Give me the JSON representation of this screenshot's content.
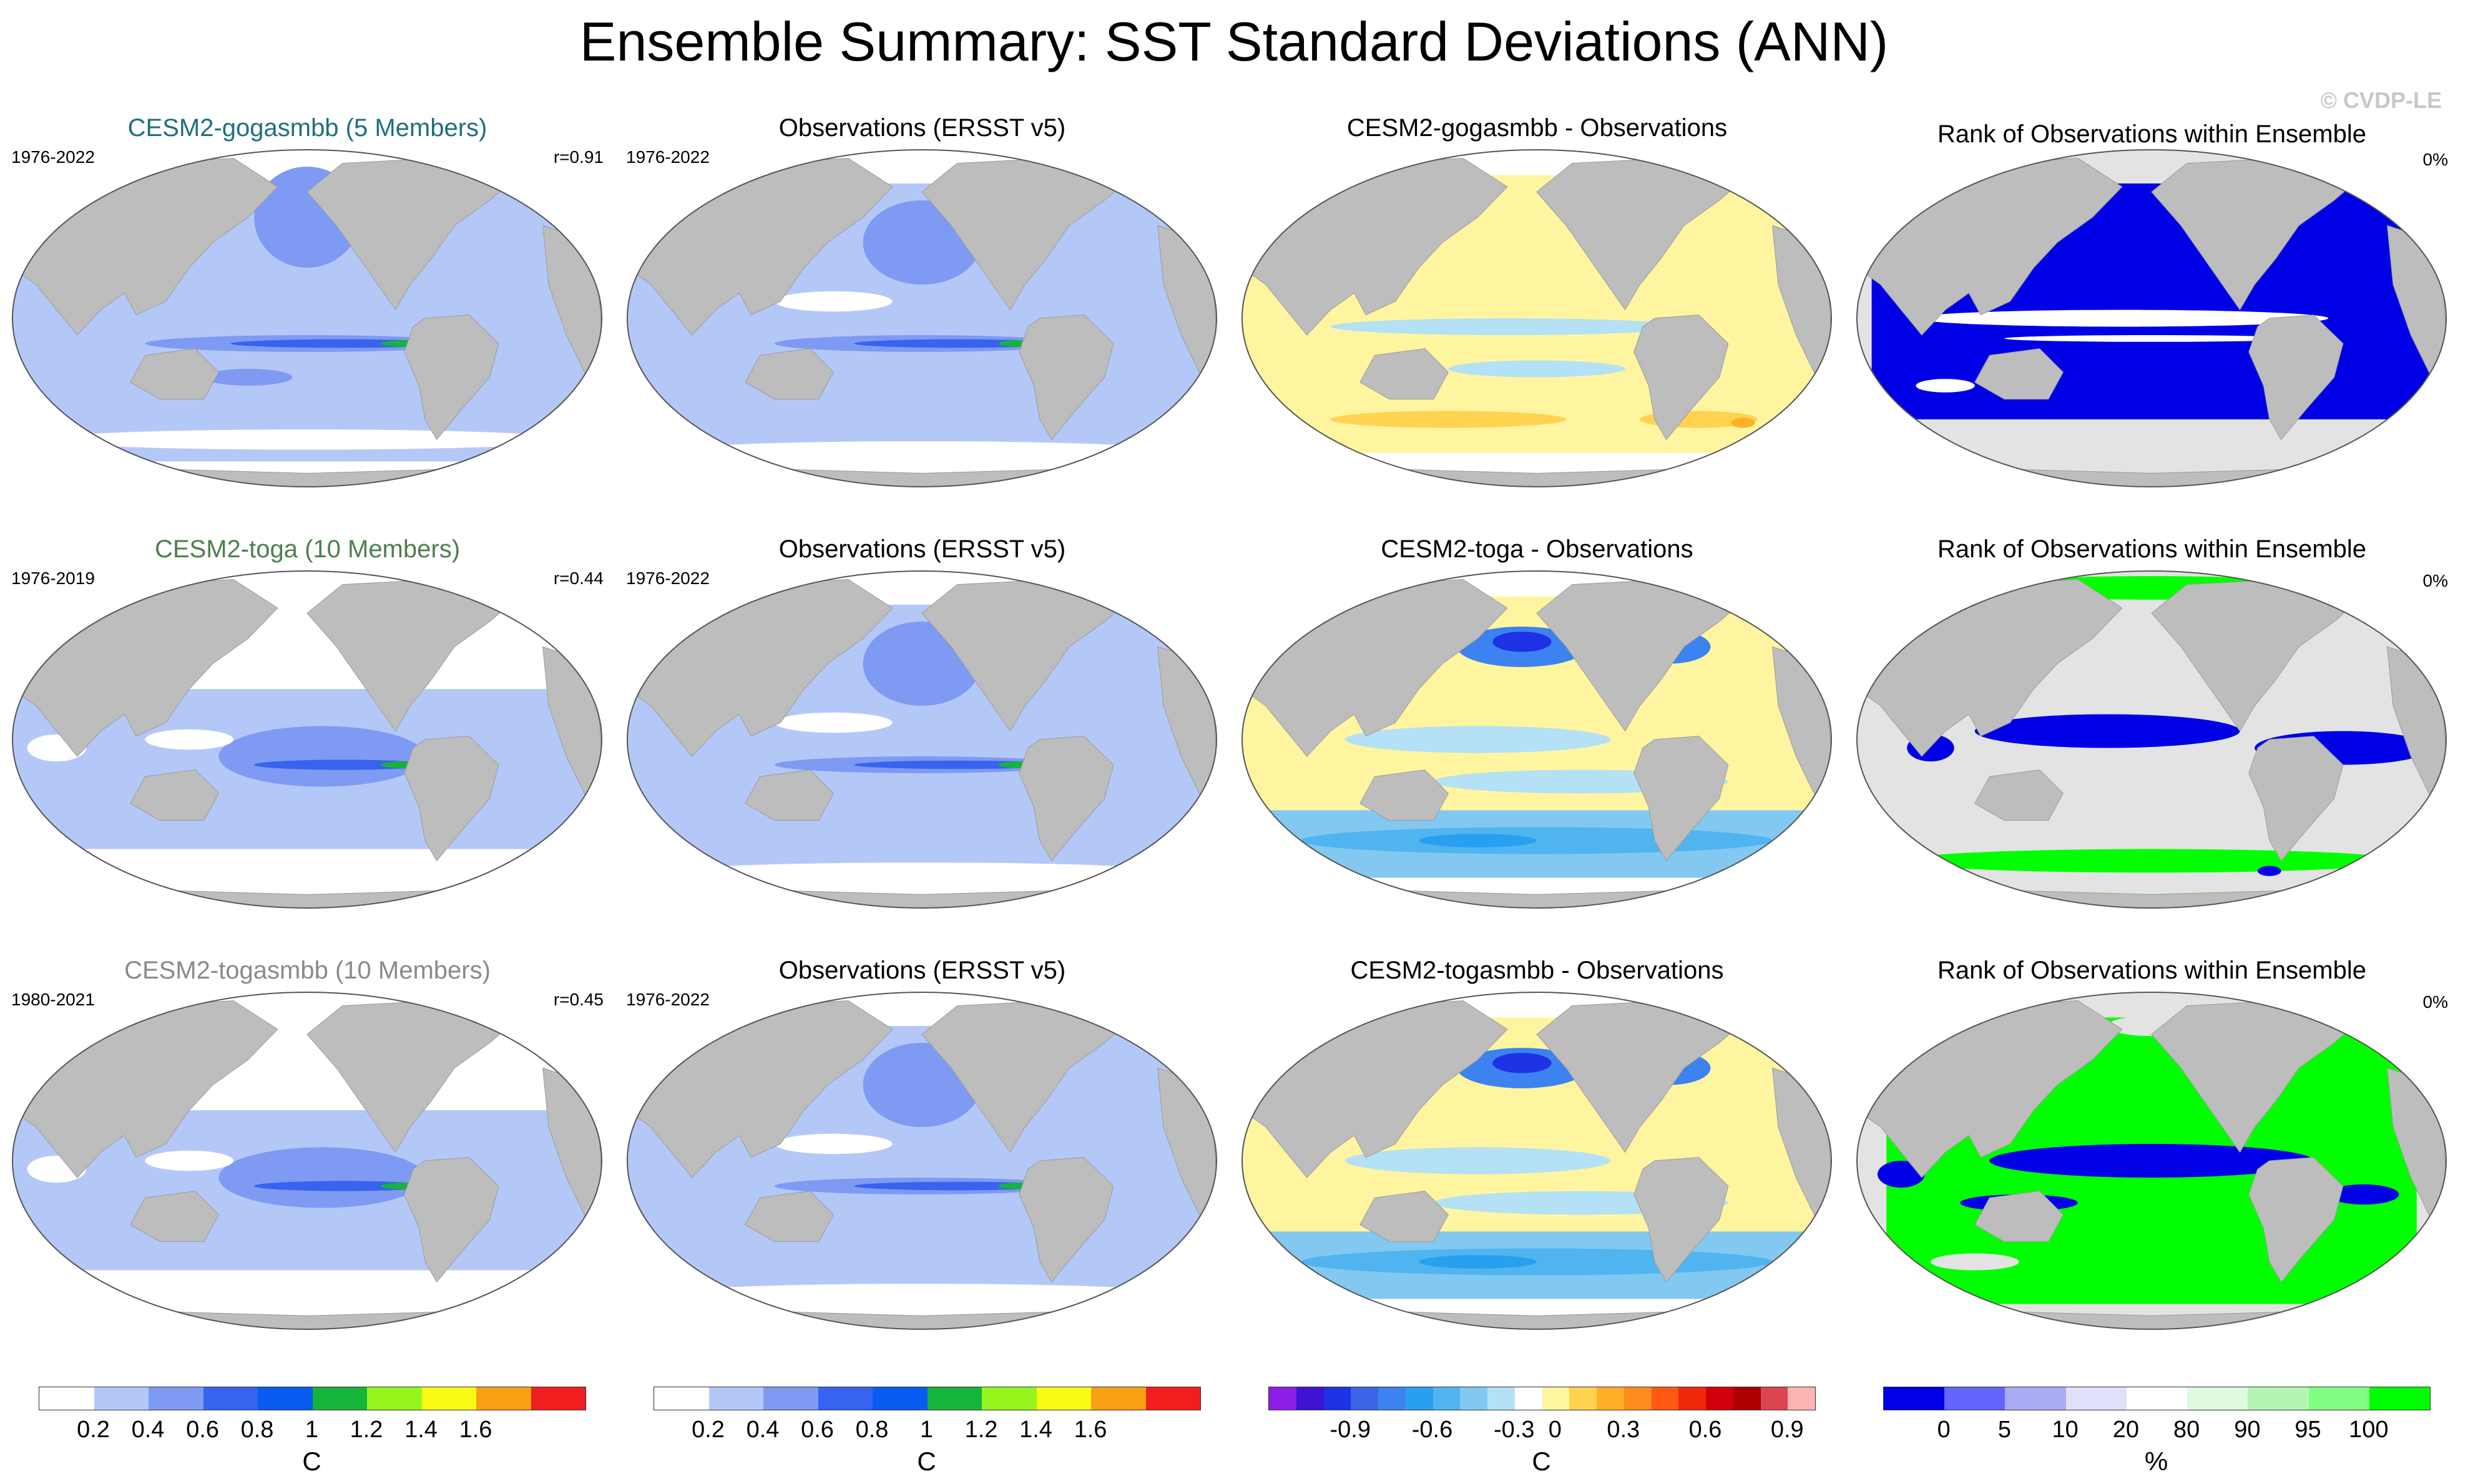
{
  "header": {
    "title": "Ensemble Summary: SST Standard Deviations (ANN)",
    "watermark": "© CVDP-LE"
  },
  "colors": {
    "model_title_row1": "#1f6f7d",
    "model_title_row2": "#4e7f4e",
    "model_title_row3": "#8a8a8a",
    "land": "#bdbdbd",
    "ocean_background": "#ffffff"
  },
  "rows": [
    {
      "model": {
        "title": "CESM2-gogasmbb (5 Members)",
        "years": "1976-2022",
        "corr": "r=0.91"
      },
      "obs": {
        "title": "Observations (ERSST v5)",
        "years": "1976-2022"
      },
      "diff": {
        "title": "CESM2-gogasmbb - Observations"
      },
      "rank": {
        "title": "Rank of Observations within Ensemble",
        "pct": "0%"
      }
    },
    {
      "model": {
        "title": "CESM2-toga (10 Members)",
        "years": "1976-2019",
        "corr": "r=0.44"
      },
      "obs": {
        "title": "Observations (ERSST v5)",
        "years": "1976-2022"
      },
      "diff": {
        "title": "CESM2-toga - Observations"
      },
      "rank": {
        "title": "Rank of Observations within Ensemble",
        "pct": "0%"
      }
    },
    {
      "model": {
        "title": "CESM2-togasmbb (10 Members)",
        "years": "1980-2021",
        "corr": "r=0.45"
      },
      "obs": {
        "title": "Observations (ERSST v5)",
        "years": "1976-2022"
      },
      "diff": {
        "title": "CESM2-togasmbb - Observations"
      },
      "rank": {
        "title": "Rank of Observations within Ensemble",
        "pct": "0%"
      }
    }
  ],
  "chart_data": {
    "type": "heatmap",
    "projection": "Robinson (Pacific-centered)",
    "panels": 12,
    "colorbars": [
      {
        "name": "sst-stddev",
        "unit": "C",
        "ticks": [
          "0.2",
          "0.4",
          "0.6",
          "0.8",
          "1",
          "1.2",
          "1.4",
          "1.6"
        ],
        "colors": [
          "#ffffff",
          "#b4c8f8",
          "#7e9af3",
          "#3763ee",
          "#0a5cf0",
          "#17b43c",
          "#96f51e",
          "#fafa14",
          "#faa014",
          "#f01e1e"
        ]
      },
      {
        "name": "sst-stddev-obs",
        "unit": "C",
        "ticks": [
          "0.2",
          "0.4",
          "0.6",
          "0.8",
          "1",
          "1.2",
          "1.4",
          "1.6"
        ],
        "colors": [
          "#ffffff",
          "#b4c8f8",
          "#7e9af3",
          "#3763ee",
          "#0a5cf0",
          "#17b43c",
          "#96f51e",
          "#fafa14",
          "#faa014",
          "#f01e1e"
        ]
      },
      {
        "name": "difference",
        "unit": "C",
        "ticks": [
          "-0.9",
          "-0.6",
          "-0.3",
          "0",
          "0.3",
          "0.6",
          "0.9"
        ],
        "colors": [
          "#8c1ee6",
          "#3c14d2",
          "#1e32e6",
          "#3c64e6",
          "#3c82f0",
          "#28a0f0",
          "#50b4f0",
          "#82c8f0",
          "#b4e1f5",
          "#ffffff",
          "#fff5a0",
          "#ffd250",
          "#ffaf28",
          "#ff8c1e",
          "#ff5a14",
          "#f0280a",
          "#d2000a",
          "#aa0000",
          "#dc4650",
          "#ffb4b4"
        ]
      },
      {
        "name": "rank",
        "unit": "%",
        "ticks": [
          "0",
          "5",
          "10",
          "20",
          "80",
          "90",
          "95",
          "100"
        ],
        "colors": [
          "#0000e6",
          "#6464ff",
          "#aaaaf5",
          "#e0e0fa",
          "#ffffff",
          "#e0fae0",
          "#b4f5b4",
          "#82ff82",
          "#00ff00"
        ]
      }
    ]
  }
}
